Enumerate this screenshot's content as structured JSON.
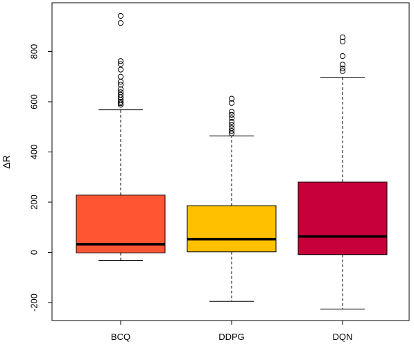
{
  "chart_data": {
    "type": "box",
    "ylabel": "ΔR",
    "xlabel": "",
    "title": "",
    "ylim": [
      -270,
      960
    ],
    "yticks": [
      -200,
      0,
      200,
      400,
      600,
      800
    ],
    "ytick_labels": [
      "-200",
      "0",
      "200",
      "400",
      "600",
      "800"
    ],
    "grid": false,
    "categories": [
      "BCQ",
      "DDPG",
      "DQN"
    ],
    "boxes": [
      {
        "label": "BCQ",
        "color": "#FF5533",
        "whisker_low": -33,
        "q1": -2,
        "median": 32,
        "q3": 228,
        "whisker_high": 568,
        "outliers": [
          942,
          914,
          762,
          750,
          728,
          700,
          680,
          668,
          650,
          638,
          628,
          618,
          608,
          600,
          594,
          588
        ]
      },
      {
        "label": "DDPG",
        "color": "#FFC000",
        "whisker_low": -195,
        "q1": 2,
        "median": 52,
        "q3": 186,
        "whisker_high": 464,
        "outliers": [
          612,
          595,
          560,
          548,
          535,
          520,
          508,
          495,
          484,
          474
        ]
      },
      {
        "label": "DQN",
        "color": "#C8003A",
        "whisker_low": -226,
        "q1": -9,
        "median": 63,
        "q3": 280,
        "whisker_high": 698,
        "outliers": [
          857,
          840,
          782,
          748,
          733,
          722
        ]
      }
    ]
  }
}
